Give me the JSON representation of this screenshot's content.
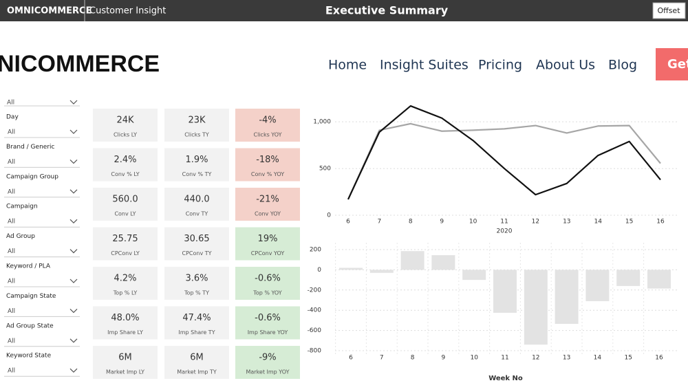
{
  "top_bar": {
    "logo": "OMNICOMMERCE",
    "app_name": "Customer Insight",
    "title": "Executive Summary",
    "button": "Offset"
  },
  "website_header": {
    "logo": "NICOMMERCE",
    "nav": [
      "Home",
      "Insight Suites",
      "Pricing",
      "About Us",
      "Blog"
    ],
    "cta": "Get"
  },
  "filters": {
    "partial_value": "All",
    "items": [
      {
        "label": "Day",
        "value": "All"
      },
      {
        "label": "Brand / Generic",
        "value": "All"
      },
      {
        "label": "Campaign Group",
        "value": "All"
      },
      {
        "label": "Campaign",
        "value": "All"
      },
      {
        "label": "Ad Group",
        "value": "All"
      },
      {
        "label": "Keyword / PLA",
        "value": "All"
      },
      {
        "label": "Campaign State",
        "value": "All"
      },
      {
        "label": "Ad Group State",
        "value": "All"
      },
      {
        "label": "Keyword State",
        "value": "All"
      }
    ]
  },
  "kpis": [
    [
      {
        "value": "24K",
        "label": "Clicks LY",
        "color": "#f2f2f2"
      },
      {
        "value": "23K",
        "label": "Clicks TY",
        "color": "#f2f2f2"
      },
      {
        "value": "-4%",
        "label": "Clicks YOY",
        "color": "#f4d1c9"
      }
    ],
    [
      {
        "value": "2.4%",
        "label": "Conv % LY",
        "color": "#f2f2f2"
      },
      {
        "value": "1.9%",
        "label": "Conv % TY",
        "color": "#f2f2f2"
      },
      {
        "value": "-18%",
        "label": "Conv % YOY",
        "color": "#f4d1c9"
      }
    ],
    [
      {
        "value": "560.0",
        "label": "Conv LY",
        "color": "#f2f2f2"
      },
      {
        "value": "440.0",
        "label": "Conv TY",
        "color": "#f2f2f2"
      },
      {
        "value": "-21%",
        "label": "Conv YOY",
        "color": "#f4d1c9"
      }
    ],
    [
      {
        "value": "25.75",
        "label": "CPConv LY",
        "color": "#f2f2f2"
      },
      {
        "value": "30.65",
        "label": "CPConv TY",
        "color": "#f2f2f2"
      },
      {
        "value": "19%",
        "label": "CPConv YOY",
        "color": "#d6ecd5"
      }
    ],
    [
      {
        "value": "4.2%",
        "label": "Top % LY",
        "color": "#f2f2f2"
      },
      {
        "value": "3.6%",
        "label": "Top % TY",
        "color": "#f2f2f2"
      },
      {
        "value": "-0.6%",
        "label": "Top % YOY",
        "color": "#d6ecd5"
      }
    ],
    [
      {
        "value": "48.0%",
        "label": "Imp Share LY",
        "color": "#f2f2f2"
      },
      {
        "value": "47.4%",
        "label": "Imp Share TY",
        "color": "#f2f2f2"
      },
      {
        "value": "-0.6%",
        "label": "Imp Share YOY",
        "color": "#d6ecd5"
      }
    ],
    [
      {
        "value": "6M",
        "label": "Market Imp LY",
        "color": "#f2f2f2"
      },
      {
        "value": "6M",
        "label": "Market Imp TY",
        "color": "#f2f2f2"
      },
      {
        "value": "-9%",
        "label": "Market Imp YOY",
        "color": "#d6ecd5"
      }
    ]
  ],
  "chart_data": [
    {
      "type": "line",
      "categories": [
        "6",
        "7",
        "8",
        "9",
        "10",
        "11",
        "12",
        "13",
        "14",
        "15",
        "16"
      ],
      "x_group_label": "2020",
      "series": [
        {
          "color": "#a6a6a6",
          "values": [
            170,
            910,
            980,
            900,
            910,
            925,
            960,
            880,
            955,
            960,
            555
          ]
        },
        {
          "color": "#111111",
          "values": [
            170,
            890,
            1170,
            1040,
            800,
            500,
            220,
            340,
            640,
            790,
            380
          ]
        }
      ],
      "ylim": [
        0,
        1200
      ],
      "yticks": [
        0,
        500,
        {
          "value": 1000,
          "label": "1,000"
        }
      ],
      "grid": true
    },
    {
      "type": "bar",
      "categories": [
        "6",
        "7",
        "8",
        "9",
        "10",
        "11",
        "12",
        "13",
        "14",
        "15",
        "16"
      ],
      "values": [
        20,
        -30,
        185,
        145,
        -100,
        -425,
        -740,
        -535,
        -310,
        -160,
        -185
      ],
      "color": "#e3e3e3",
      "ylim": [
        -800,
        200
      ],
      "yticks": [
        200,
        0,
        -200,
        -400,
        -600,
        -800
      ],
      "x_label": "Week No",
      "grid": true
    }
  ]
}
